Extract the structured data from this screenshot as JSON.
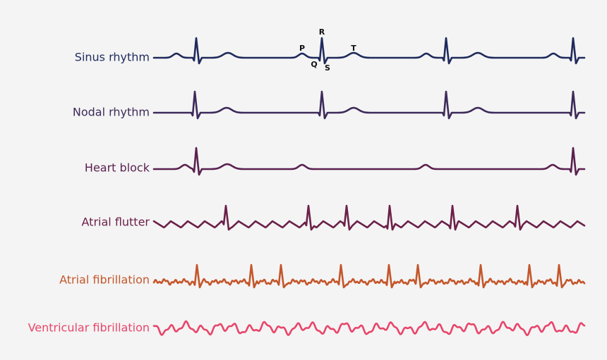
{
  "rhythms": [
    {
      "label": "Sinus rhythm"
    },
    {
      "label": "Nodal rhythm"
    },
    {
      "label": "Heart block"
    },
    {
      "label": "Atrial flutter"
    },
    {
      "label": "Atrial fibrillation"
    },
    {
      "label": "Ventricular fibrillation"
    }
  ],
  "wave_labels": [
    "P",
    "Q",
    "R",
    "S",
    "T"
  ]
}
